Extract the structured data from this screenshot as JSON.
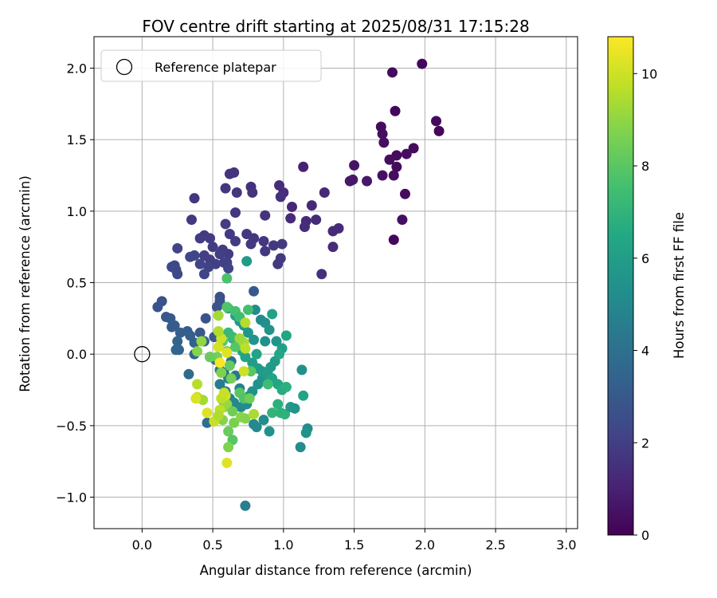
{
  "chart_data": {
    "type": "scatter",
    "title": "FOV centre drift starting at 2025/08/31 17:15:28",
    "xlabel": "Angular distance from reference (arcmin)",
    "ylabel": "Rotation from reference (arcmin)",
    "xlim": [
      -0.34,
      3.08
    ],
    "ylim": [
      -1.22,
      2.22
    ],
    "x_ticks": [
      0.0,
      0.5,
      1.0,
      1.5,
      2.0,
      2.5,
      3.0
    ],
    "x_tick_labels": [
      "0.0",
      "0.5",
      "1.0",
      "1.5",
      "2.0",
      "2.5",
      "3.0"
    ],
    "y_ticks": [
      -1.0,
      -0.5,
      0.0,
      0.5,
      1.0,
      1.5,
      2.0
    ],
    "y_tick_labels": [
      "−1.0",
      "−0.5",
      "0.0",
      "0.5",
      "1.0",
      "1.5",
      "2.0"
    ],
    "grid": true,
    "legend": {
      "position": "top-left",
      "entries": [
        "Reference platepar"
      ]
    },
    "reference_point": {
      "x": 0.0,
      "y": 0.0,
      "label": "Reference platepar"
    },
    "colorbar": {
      "label": "Hours from first FF file",
      "range": [
        0,
        10.8
      ],
      "ticks": [
        0,
        2,
        4,
        6,
        8,
        10
      ],
      "tick_labels": [
        "0",
        "2",
        "4",
        "6",
        "8",
        "10"
      ],
      "colormap": "viridis"
    },
    "points": [
      [
        1.98,
        2.03,
        0.2
      ],
      [
        1.77,
        1.97,
        0.3
      ],
      [
        1.79,
        1.7,
        0.2
      ],
      [
        2.08,
        1.63,
        0.3
      ],
      [
        2.1,
        1.56,
        0.2
      ],
      [
        1.69,
        1.59,
        0.3
      ],
      [
        1.7,
        1.54,
        0.4
      ],
      [
        1.71,
        1.48,
        0.4
      ],
      [
        1.92,
        1.44,
        0.3
      ],
      [
        1.87,
        1.4,
        0.4
      ],
      [
        1.8,
        1.39,
        0.3
      ],
      [
        1.75,
        1.36,
        0.4
      ],
      [
        1.8,
        1.31,
        0.3
      ],
      [
        1.78,
        1.25,
        0.4
      ],
      [
        1.7,
        1.25,
        0.5
      ],
      [
        1.86,
        1.12,
        0.3
      ],
      [
        1.84,
        0.94,
        0.4
      ],
      [
        1.78,
        0.8,
        0.2
      ],
      [
        1.5,
        1.32,
        0.6
      ],
      [
        1.49,
        1.22,
        0.7
      ],
      [
        1.47,
        1.21,
        0.7
      ],
      [
        1.59,
        1.21,
        0.7
      ],
      [
        1.14,
        1.31,
        1.0
      ],
      [
        1.29,
        1.13,
        1.2
      ],
      [
        1.06,
        1.03,
        1.2
      ],
      [
        1.2,
        1.04,
        1.2
      ],
      [
        1.23,
        0.94,
        1.3
      ],
      [
        1.05,
        0.95,
        1.3
      ],
      [
        1.16,
        0.93,
        1.3
      ],
      [
        1.15,
        0.89,
        1.4
      ],
      [
        1.39,
        0.88,
        1.3
      ],
      [
        1.35,
        0.86,
        1.3
      ],
      [
        1.35,
        0.75,
        1.4
      ],
      [
        1.27,
        0.56,
        1.5
      ],
      [
        0.97,
        1.18,
        1.4
      ],
      [
        1.0,
        1.13,
        1.4
      ],
      [
        0.98,
        1.1,
        1.5
      ],
      [
        0.77,
        1.17,
        1.5
      ],
      [
        0.78,
        1.13,
        1.6
      ],
      [
        0.65,
        1.27,
        1.6
      ],
      [
        0.62,
        1.26,
        1.6
      ],
      [
        0.59,
        1.16,
        1.7
      ],
      [
        0.67,
        1.13,
        1.7
      ],
      [
        0.87,
        0.97,
        1.6
      ],
      [
        0.66,
        0.99,
        1.7
      ],
      [
        0.74,
        0.84,
        1.7
      ],
      [
        0.79,
        0.81,
        1.7
      ],
      [
        0.77,
        0.77,
        1.8
      ],
      [
        0.86,
        0.79,
        1.7
      ],
      [
        0.93,
        0.76,
        1.8
      ],
      [
        0.99,
        0.77,
        1.8
      ],
      [
        0.87,
        0.72,
        1.8
      ],
      [
        0.98,
        0.67,
        1.8
      ],
      [
        0.96,
        0.63,
        1.8
      ],
      [
        0.62,
        0.84,
        1.8
      ],
      [
        0.59,
        0.91,
        1.9
      ],
      [
        0.66,
        0.79,
        1.9
      ],
      [
        0.57,
        0.73,
        1.9
      ],
      [
        0.61,
        0.7,
        1.9
      ],
      [
        0.5,
        0.75,
        1.9
      ],
      [
        0.55,
        0.7,
        2.0
      ],
      [
        0.48,
        0.66,
        2.0
      ],
      [
        0.44,
        0.69,
        2.0
      ],
      [
        0.52,
        0.63,
        2.0
      ],
      [
        0.58,
        0.64,
        2.1
      ],
      [
        0.6,
        0.64,
        2.1
      ],
      [
        0.61,
        0.6,
        2.2
      ],
      [
        0.47,
        0.61,
        2.1
      ],
      [
        0.44,
        0.56,
        2.2
      ],
      [
        0.41,
        0.63,
        2.2
      ],
      [
        0.37,
        0.69,
        2.3
      ],
      [
        0.34,
        0.68,
        2.3
      ],
      [
        0.44,
        0.83,
        1.8
      ],
      [
        0.41,
        0.81,
        1.9
      ],
      [
        0.48,
        0.81,
        1.9
      ],
      [
        0.35,
        0.94,
        1.8
      ],
      [
        0.37,
        1.09,
        1.7
      ],
      [
        0.25,
        0.74,
        2.2
      ],
      [
        0.23,
        0.62,
        2.3
      ],
      [
        0.24,
        0.59,
        2.4
      ],
      [
        0.25,
        0.56,
        2.4
      ],
      [
        0.21,
        0.61,
        2.4
      ],
      [
        0.55,
        0.4,
        2.6
      ],
      [
        0.55,
        0.37,
        2.7
      ],
      [
        0.53,
        0.33,
        2.7
      ],
      [
        0.45,
        0.25,
        2.8
      ],
      [
        0.41,
        0.15,
        2.9
      ],
      [
        0.51,
        0.12,
        3.0
      ],
      [
        0.14,
        0.37,
        2.7
      ],
      [
        0.11,
        0.33,
        2.8
      ],
      [
        0.17,
        0.26,
        2.9
      ],
      [
        0.2,
        0.25,
        3.0
      ],
      [
        0.23,
        0.2,
        3.1
      ],
      [
        0.21,
        0.19,
        3.1
      ],
      [
        0.27,
        0.15,
        3.2
      ],
      [
        0.32,
        0.16,
        3.2
      ],
      [
        0.34,
        0.13,
        3.3
      ],
      [
        0.37,
        0.08,
        3.3
      ],
      [
        0.44,
        0.09,
        3.4
      ],
      [
        0.25,
        0.09,
        3.4
      ],
      [
        0.24,
        0.03,
        3.5
      ],
      [
        0.26,
        0.03,
        3.5
      ],
      [
        0.37,
        0.0,
        3.6
      ],
      [
        0.33,
        -0.14,
        3.7
      ],
      [
        0.48,
        -0.02,
        3.8
      ],
      [
        0.52,
        -0.04,
        3.9
      ],
      [
        0.46,
        -0.48,
        3.9
      ],
      [
        0.63,
        -0.05,
        4.0
      ],
      [
        0.55,
        -0.11,
        4.1
      ],
      [
        0.58,
        -0.13,
        4.2
      ],
      [
        0.66,
        -0.15,
        4.3
      ],
      [
        0.61,
        -0.17,
        4.4
      ],
      [
        0.55,
        -0.21,
        4.5
      ],
      [
        0.59,
        -0.26,
        4.6
      ],
      [
        0.69,
        -0.24,
        4.7
      ],
      [
        0.62,
        -0.31,
        4.8
      ],
      [
        0.57,
        -0.32,
        4.9
      ],
      [
        0.65,
        -0.34,
        5.0
      ],
      [
        0.7,
        -0.37,
        5.1
      ],
      [
        0.74,
        -0.35,
        5.2
      ],
      [
        0.76,
        -0.29,
        5.3
      ],
      [
        0.78,
        -0.26,
        5.4
      ],
      [
        0.82,
        -0.21,
        5.5
      ],
      [
        0.85,
        -0.17,
        5.6
      ],
      [
        0.88,
        -0.13,
        5.7
      ],
      [
        0.91,
        -0.09,
        5.8
      ],
      [
        0.94,
        -0.05,
        5.9
      ],
      [
        0.79,
        -0.49,
        5.0
      ],
      [
        0.81,
        -0.51,
        5.1
      ],
      [
        0.86,
        -0.46,
        5.2
      ],
      [
        0.73,
        -1.06,
        4.6
      ],
      [
        0.74,
        0.65,
        5.8
      ],
      [
        0.79,
        0.44,
        3.0
      ],
      [
        0.8,
        0.31,
        5.2
      ],
      [
        0.84,
        0.24,
        5.1
      ],
      [
        0.87,
        0.22,
        5.3
      ],
      [
        0.9,
        0.17,
        5.5
      ],
      [
        0.92,
        0.28,
        6.2
      ],
      [
        0.95,
        0.09,
        5.6
      ],
      [
        0.87,
        0.09,
        5.4
      ],
      [
        0.79,
        0.1,
        5.6
      ],
      [
        0.75,
        0.15,
        5.7
      ],
      [
        0.72,
        0.2,
        5.7
      ],
      [
        0.69,
        0.23,
        5.8
      ],
      [
        0.66,
        0.27,
        6.1
      ],
      [
        0.61,
        0.32,
        6.3
      ],
      [
        0.64,
        0.11,
        6.5
      ],
      [
        0.68,
        0.06,
        6.6
      ],
      [
        0.71,
        0.02,
        6.4
      ],
      [
        0.73,
        -0.02,
        6.2
      ],
      [
        0.78,
        -0.06,
        6.0
      ],
      [
        0.82,
        -0.1,
        5.9
      ],
      [
        0.85,
        -0.12,
        5.8
      ],
      [
        0.89,
        -0.14,
        6.0
      ],
      [
        0.92,
        -0.17,
        6.2
      ],
      [
        0.96,
        -0.21,
        6.4
      ],
      [
        0.99,
        -0.25,
        6.6
      ],
      [
        1.02,
        -0.23,
        6.8
      ],
      [
        0.96,
        -0.35,
        6.8
      ],
      [
        0.92,
        -0.41,
        7.0
      ],
      [
        0.98,
        -0.41,
        6.9
      ],
      [
        1.01,
        -0.42,
        6.9
      ],
      [
        1.05,
        -0.37,
        5.8
      ],
      [
        1.08,
        -0.38,
        5.6
      ],
      [
        1.13,
        -0.11,
        5.4
      ],
      [
        1.14,
        -0.29,
        6.3
      ],
      [
        1.17,
        -0.52,
        5.2
      ],
      [
        1.16,
        -0.55,
        5.5
      ],
      [
        1.12,
        -0.65,
        5.2
      ],
      [
        0.9,
        -0.54,
        5.4
      ],
      [
        1.02,
        0.13,
        6.3
      ],
      [
        0.99,
        0.04,
        6.1
      ],
      [
        0.97,
        0.0,
        6.4
      ],
      [
        0.81,
        0.0,
        6.2
      ],
      [
        0.6,
        0.53,
        7.7
      ],
      [
        0.6,
        0.33,
        7.8
      ],
      [
        0.66,
        0.3,
        7.6
      ],
      [
        0.69,
        0.26,
        7.4
      ],
      [
        0.75,
        0.31,
        7.5
      ],
      [
        0.61,
        0.15,
        7.2
      ],
      [
        0.64,
        0.12,
        7.3
      ],
      [
        0.57,
        0.09,
        8.0
      ],
      [
        0.66,
        0.05,
        7.9
      ],
      [
        0.6,
        0.02,
        8.1
      ],
      [
        0.53,
        -0.02,
        8.5
      ],
      [
        0.48,
        -0.02,
        8.3
      ],
      [
        0.62,
        -0.08,
        8.2
      ],
      [
        0.56,
        -0.13,
        8.7
      ],
      [
        0.63,
        -0.17,
        8.5
      ],
      [
        0.69,
        -0.27,
        8.0
      ],
      [
        0.72,
        -0.31,
        7.8
      ],
      [
        0.58,
        -0.37,
        8.9
      ],
      [
        0.6,
        -0.35,
        9.1
      ],
      [
        0.64,
        -0.4,
        8.4
      ],
      [
        0.57,
        -0.46,
        8.8
      ],
      [
        0.65,
        -0.48,
        8.6
      ],
      [
        0.7,
        -0.44,
        8.9
      ],
      [
        0.73,
        -0.45,
        8.8
      ],
      [
        0.76,
        -0.31,
        8.4
      ],
      [
        0.77,
        -0.12,
        8.0
      ],
      [
        0.61,
        -0.54,
        8.3
      ],
      [
        0.64,
        -0.6,
        7.9
      ],
      [
        0.61,
        -0.65,
        8.7
      ],
      [
        0.6,
        -0.76,
        10.3
      ],
      [
        0.79,
        -0.42,
        9.4
      ],
      [
        0.89,
        -0.21,
        7.4
      ],
      [
        0.39,
        -0.21,
        9.6
      ],
      [
        0.39,
        -0.3,
        9.8
      ],
      [
        0.43,
        -0.32,
        9.3
      ],
      [
        0.38,
        -0.31,
        10.2
      ],
      [
        0.46,
        -0.41,
        10.3
      ],
      [
        0.51,
        -0.47,
        9.9
      ],
      [
        0.59,
        -0.29,
        10.1
      ],
      [
        0.55,
        -0.39,
        9.7
      ],
      [
        0.54,
        0.05,
        10.1
      ],
      [
        0.56,
        0.11,
        10.0
      ],
      [
        0.54,
        0.16,
        9.5
      ],
      [
        0.54,
        0.27,
        9.3
      ],
      [
        0.42,
        0.09,
        9.0
      ],
      [
        0.39,
        0.02,
        8.8
      ],
      [
        0.73,
        0.22,
        9.6
      ],
      [
        0.72,
        0.08,
        9.4
      ],
      [
        0.69,
        0.11,
        9.2
      ],
      [
        0.73,
        0.04,
        9.7
      ],
      [
        0.6,
        0.01,
        10.3
      ],
      [
        0.55,
        -0.06,
        10.7
      ],
      [
        0.72,
        -0.12,
        10.0
      ],
      [
        0.54,
        -0.43,
        9.5
      ],
      [
        0.56,
        -0.31,
        9.7
      ],
      [
        0.58,
        -0.27,
        9.9
      ]
    ]
  }
}
